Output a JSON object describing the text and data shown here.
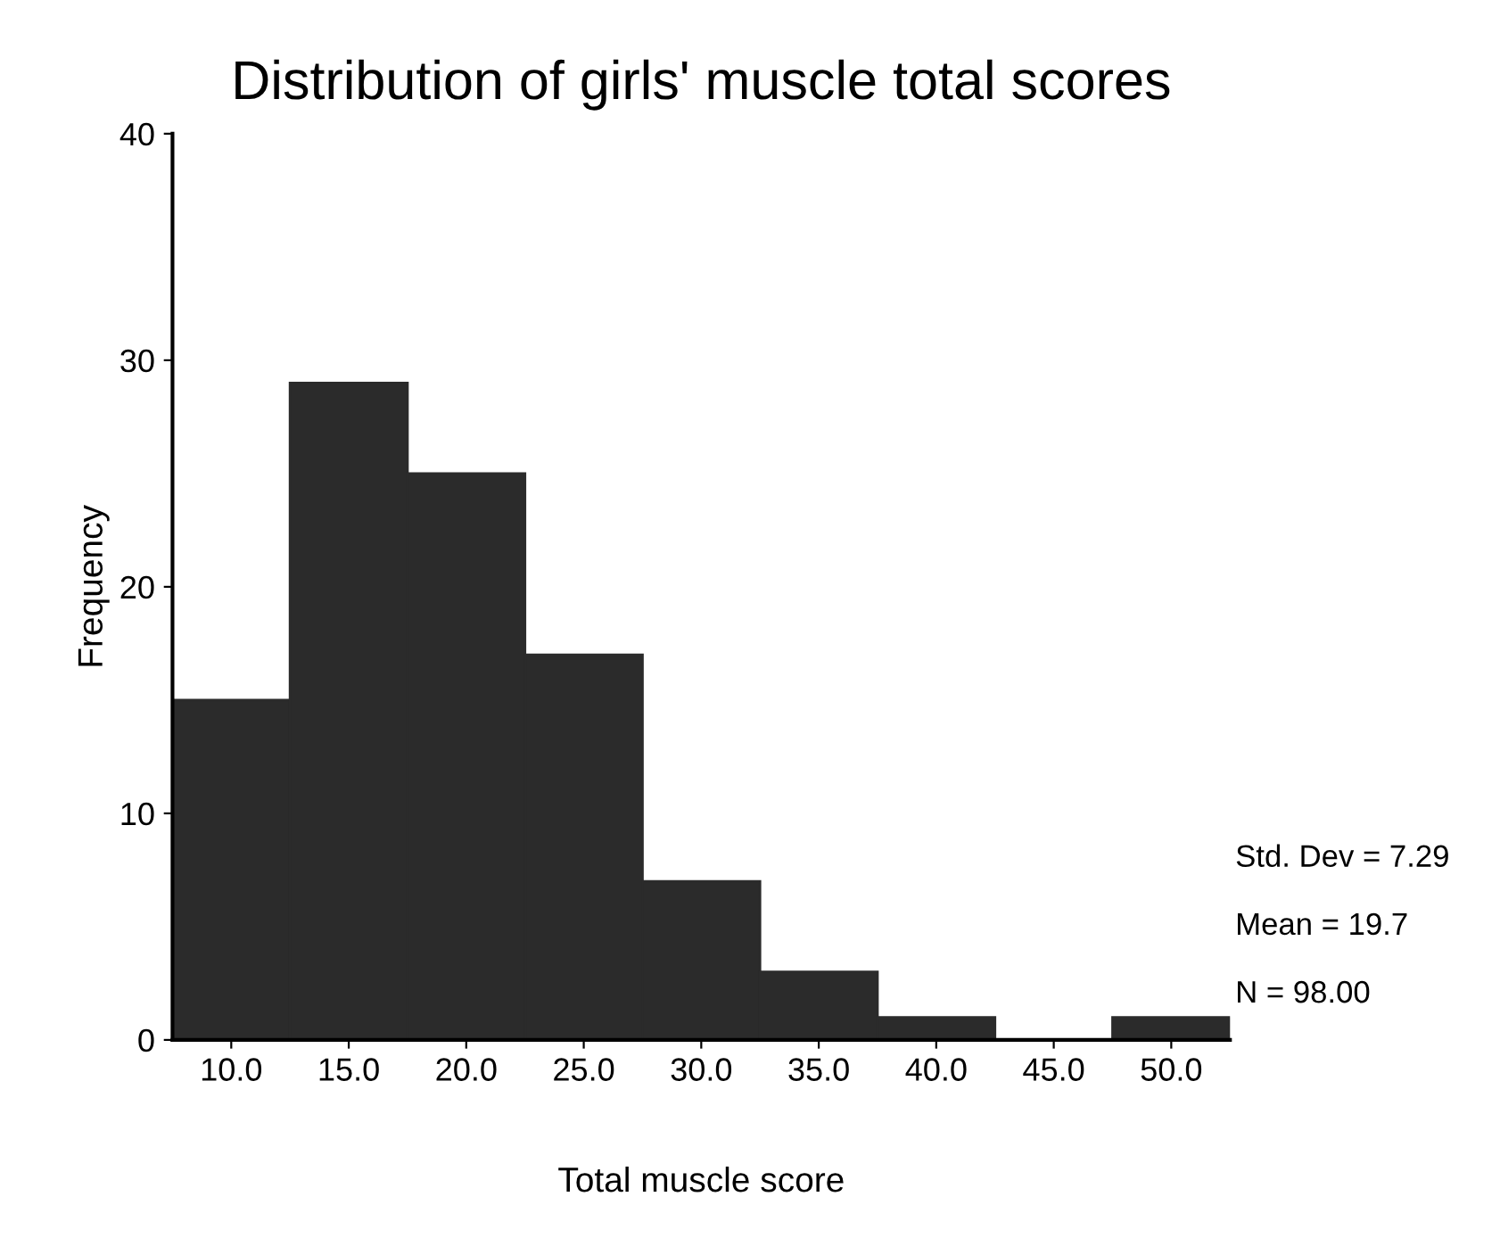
{
  "chart_data": {
    "type": "histogram",
    "title": "Distribution of girls' muscle total scores",
    "xlabel": "Total muscle score",
    "ylabel": "Frequency",
    "bins": [
      7.5,
      12.5,
      17.5,
      22.5,
      27.5,
      32.5,
      37.5,
      42.5,
      47.5,
      52.5
    ],
    "values": [
      15,
      29,
      25,
      17,
      7,
      3,
      1,
      0,
      1
    ],
    "color": "#2b2b2b",
    "xlim": [
      7.5,
      52.5
    ],
    "xticks": [
      {
        "value": 10,
        "label": "10.0"
      },
      {
        "value": 15,
        "label": "15.0"
      },
      {
        "value": 20,
        "label": "20.0"
      },
      {
        "value": 25,
        "label": "25.0"
      },
      {
        "value": 30,
        "label": "30.0"
      },
      {
        "value": 35,
        "label": "35.0"
      },
      {
        "value": 40,
        "label": "40.0"
      },
      {
        "value": 45,
        "label": "45.0"
      },
      {
        "value": 50,
        "label": "50.0"
      }
    ],
    "ylim": [
      0,
      40
    ],
    "yticks": [
      0,
      10,
      20,
      30,
      40
    ],
    "annotations": [
      "Std. Dev = 7.29",
      "Mean = 19.7",
      "N = 98.00"
    ],
    "grid": false,
    "legend": false
  }
}
